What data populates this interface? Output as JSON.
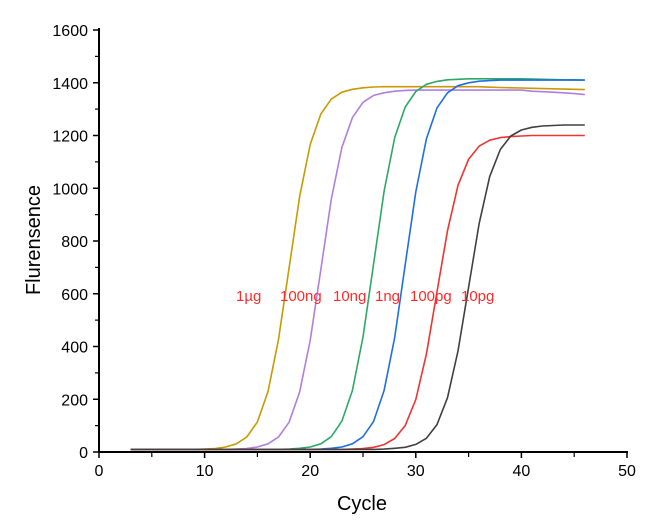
{
  "chart_data": {
    "type": "line",
    "title": "",
    "xlabel": "Cycle",
    "ylabel": "Flurensence",
    "xlim": [
      0,
      50
    ],
    "ylim": [
      0,
      1600
    ],
    "xticks": [
      "0",
      "10",
      "20",
      "30",
      "40",
      "50"
    ],
    "yticks": [
      "0",
      "200",
      "400",
      "600",
      "800",
      "1000",
      "1200",
      "1400",
      "1600"
    ],
    "grid": false,
    "legend": "none",
    "annotations": [
      "1µg",
      "100ng",
      "10ng",
      "1ng",
      "100pg",
      "10pg"
    ],
    "annotation_color": "#ff2a2a",
    "x": [
      3,
      4,
      5,
      6,
      7,
      8,
      9,
      10,
      11,
      12,
      13,
      14,
      15,
      16,
      17,
      18,
      19,
      20,
      21,
      22,
      23,
      24,
      25,
      26,
      27,
      28,
      29,
      30,
      31,
      32,
      33,
      34,
      35,
      36,
      37,
      38,
      39,
      40,
      41,
      42,
      43,
      44,
      45,
      46
    ],
    "series": [
      {
        "color": "#c89b00",
        "values": [
          10,
          10,
          10,
          10,
          10,
          10,
          10,
          11,
          13,
          19,
          31,
          57,
          114,
          229,
          427,
          698,
          968,
          1166,
          1281,
          1338,
          1364,
          1375,
          1381,
          1384,
          1385,
          1385,
          1385,
          1385,
          1385,
          1385,
          1385,
          1385,
          1385,
          1385,
          1383,
          1382,
          1381,
          1380,
          1379,
          1378,
          1377,
          1376,
          1375,
          1374
        ]
      },
      {
        "color": "#b07ee0",
        "values": [
          10,
          10,
          10,
          10,
          10,
          10,
          10,
          10,
          10,
          10,
          11,
          13,
          19,
          31,
          57,
          113,
          227,
          423,
          691,
          959,
          1155,
          1268,
          1326,
          1352,
          1362,
          1368,
          1371,
          1372,
          1372,
          1372,
          1372,
          1372,
          1372,
          1372,
          1372,
          1372,
          1372,
          1372,
          1368,
          1366,
          1364,
          1362,
          1359,
          1355
        ]
      },
      {
        "color": "#2ea866",
        "values": [
          10,
          10,
          10,
          10,
          10,
          10,
          10,
          10,
          10,
          10,
          10,
          10,
          10,
          10,
          10,
          11,
          14,
          19,
          31,
          58,
          117,
          233,
          436,
          713,
          989,
          1192,
          1308,
          1367,
          1394,
          1405,
          1411,
          1413,
          1415,
          1415,
          1415,
          1415,
          1415,
          1415,
          1414,
          1413,
          1412,
          1411,
          1411,
          1410
        ]
      },
      {
        "color": "#1f6fe0",
        "values": [
          10,
          10,
          10,
          10,
          10,
          10,
          10,
          10,
          10,
          10,
          10,
          10,
          10,
          10,
          10,
          10,
          10,
          10,
          11,
          14,
          19,
          31,
          58,
          116,
          233,
          434,
          710,
          986,
          1187,
          1304,
          1362,
          1389,
          1400,
          1406,
          1408,
          1410,
          1410,
          1410,
          1410,
          1410,
          1410,
          1410,
          1410,
          1410
        ]
      },
      {
        "color": "#ee3333",
        "values": [
          10,
          10,
          10,
          10,
          10,
          10,
          10,
          10,
          10,
          10,
          10,
          10,
          10,
          10,
          10,
          10,
          10,
          10,
          10,
          10,
          10,
          11,
          13,
          18,
          28,
          51,
          100,
          199,
          371,
          605,
          839,
          1011,
          1110,
          1160,
          1182,
          1192,
          1196,
          1198,
          1200,
          1200,
          1200,
          1200,
          1200,
          1200
        ]
      },
      {
        "color": "#404040",
        "values": [
          10,
          10,
          10,
          10,
          10,
          10,
          10,
          10,
          10,
          10,
          10,
          10,
          10,
          10,
          10,
          10,
          10,
          10,
          10,
          10,
          10,
          10,
          10,
          10,
          11,
          14,
          18,
          29,
          52,
          103,
          206,
          383,
          625,
          867,
          1044,
          1147,
          1198,
          1221,
          1231,
          1236,
          1238,
          1240,
          1240,
          1240
        ]
      }
    ]
  }
}
